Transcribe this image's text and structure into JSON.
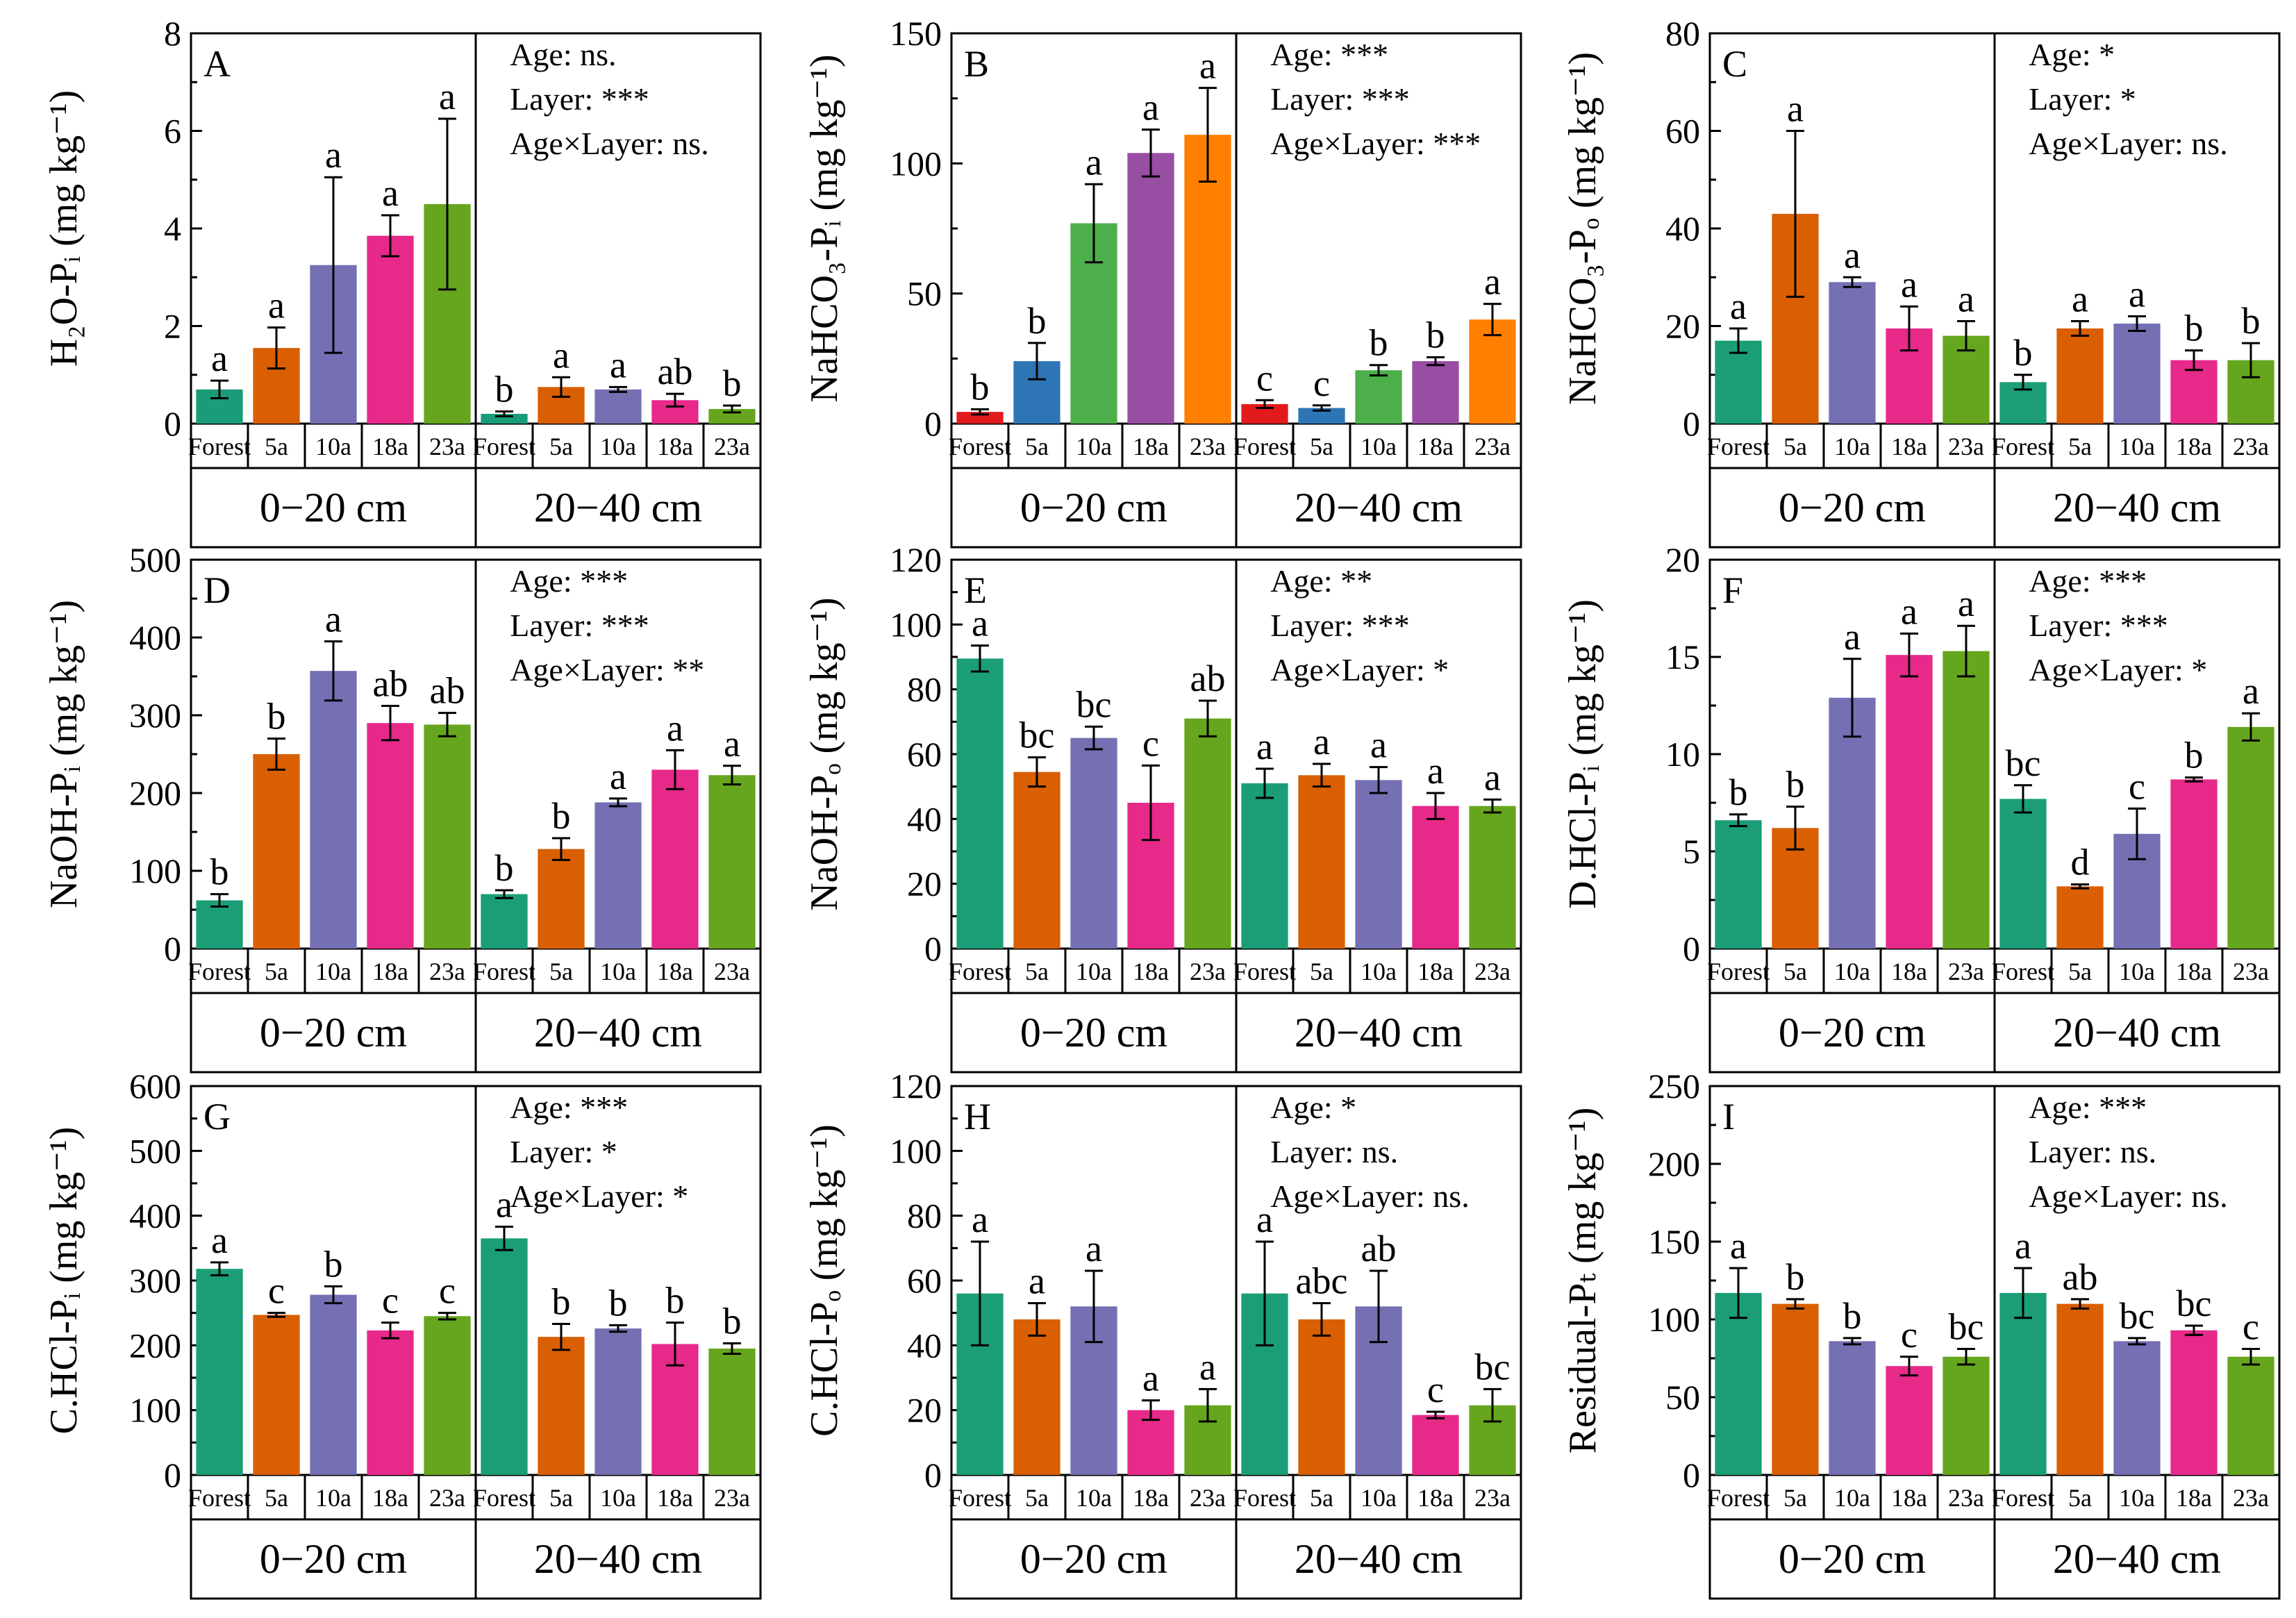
{
  "figure": {
    "layer_labels": [
      "0−20 cm",
      "20−40 cm"
    ]
  },
  "chart_data": [
    {
      "type": "bar",
      "panel": "A",
      "ylabel": "H₂O-Pᵢ (mg kg⁻¹)",
      "ylim": [
        0,
        8
      ],
      "yticks": [
        0,
        2,
        4,
        6,
        8
      ],
      "categories": [
        "Forest",
        "5a",
        "10a",
        "18a",
        "23a"
      ],
      "stats": [
        "Age: ns.",
        "Layer: ***",
        "Age×Layer: ns."
      ],
      "groups": [
        {
          "name": "0−20 cm",
          "values": [
            0.7,
            1.55,
            3.25,
            3.85,
            4.5
          ],
          "errors": [
            0.18,
            0.42,
            1.8,
            0.42,
            1.75
          ],
          "letters": [
            "a",
            "a",
            "a",
            "a",
            "a"
          ]
        },
        {
          "name": "20−40 cm",
          "values": [
            0.2,
            0.75,
            0.7,
            0.48,
            0.3
          ],
          "errors": [
            0.05,
            0.2,
            0.05,
            0.13,
            0.07
          ],
          "letters": [
            "b",
            "a",
            "a",
            "ab",
            "b"
          ]
        }
      ]
    },
    {
      "type": "bar",
      "panel": "B",
      "ylabel": "NaHCO₃-Pᵢ (mg kg⁻¹)",
      "ylim": [
        0,
        150
      ],
      "yticks": [
        0,
        50,
        100,
        150
      ],
      "categories": [
        "Forest",
        "5a",
        "10a",
        "18a",
        "23a"
      ],
      "stats": [
        "Age: ***",
        "Layer: ***",
        "Age×Layer: ***"
      ],
      "groups": [
        {
          "name": "0−20 cm",
          "values": [
            4.5,
            24,
            77,
            104,
            111
          ],
          "errors": [
            1,
            7,
            15,
            9,
            18
          ],
          "letters": [
            "b",
            "b",
            "a",
            "a",
            "a"
          ]
        },
        {
          "name": "20−40 cm",
          "values": [
            7.5,
            6,
            20.5,
            24,
            40
          ],
          "errors": [
            1.5,
            1,
            2,
            1.5,
            6
          ],
          "letters": [
            "c",
            "c",
            "b",
            "b",
            "a"
          ]
        }
      ]
    },
    {
      "type": "bar",
      "panel": "C",
      "ylabel": "NaHCO₃-Pₒ (mg kg⁻¹)",
      "ylim": [
        0,
        80
      ],
      "yticks": [
        0,
        20,
        40,
        60,
        80
      ],
      "categories": [
        "Forest",
        "5a",
        "10a",
        "18a",
        "23a"
      ],
      "stats": [
        "Age: *",
        "Layer: *",
        "Age×Layer: ns."
      ],
      "groups": [
        {
          "name": "0−20 cm",
          "values": [
            17,
            43,
            29,
            19.5,
            18
          ],
          "errors": [
            2.5,
            17,
            1,
            4.5,
            3
          ],
          "letters": [
            "a",
            "a",
            "a",
            "a",
            "a"
          ]
        },
        {
          "name": "20−40 cm",
          "values": [
            8.5,
            19.5,
            20.5,
            13,
            13
          ],
          "errors": [
            1.5,
            1.5,
            1.5,
            2,
            3.5
          ],
          "letters": [
            "b",
            "a",
            "a",
            "b",
            "b"
          ]
        }
      ]
    },
    {
      "type": "bar",
      "panel": "D",
      "ylabel": "NaOH-Pᵢ (mg kg⁻¹)",
      "ylim": [
        0,
        500
      ],
      "yticks": [
        0,
        100,
        200,
        300,
        400,
        500
      ],
      "categories": [
        "Forest",
        "5a",
        "10a",
        "18a",
        "23a"
      ],
      "stats": [
        "Age: ***",
        "Layer: ***",
        "Age×Layer: **"
      ],
      "groups": [
        {
          "name": "0−20 cm",
          "values": [
            62,
            250,
            357,
            290,
            288
          ],
          "errors": [
            8,
            20,
            38,
            22,
            15
          ],
          "letters": [
            "b",
            "b",
            "a",
            "ab",
            "ab"
          ]
        },
        {
          "name": "20−40 cm",
          "values": [
            70,
            128,
            188,
            230,
            223
          ],
          "errors": [
            5,
            14,
            5,
            25,
            12
          ],
          "letters": [
            "b",
            "b",
            "a",
            "a",
            "a"
          ]
        }
      ]
    },
    {
      "type": "bar",
      "panel": "E",
      "ylabel": "NaOH-Pₒ (mg kg⁻¹)",
      "ylim": [
        0,
        120
      ],
      "yticks": [
        0,
        20,
        40,
        60,
        80,
        100,
        120
      ],
      "categories": [
        "Forest",
        "5a",
        "10a",
        "18a",
        "23a"
      ],
      "stats": [
        "Age: **",
        "Layer: ***",
        "Age×Layer: *"
      ],
      "groups": [
        {
          "name": "0−20 cm",
          "values": [
            89.5,
            54.5,
            65,
            45,
            71
          ],
          "errors": [
            4,
            4.5,
            3.5,
            11.5,
            5.5
          ],
          "letters": [
            "a",
            "bc",
            "bc",
            "c",
            "ab"
          ]
        },
        {
          "name": "20−40 cm",
          "values": [
            51,
            53.5,
            52,
            44,
            44
          ],
          "errors": [
            4.5,
            3.5,
            4,
            4,
            2
          ],
          "letters": [
            "a",
            "a",
            "a",
            "a",
            "a"
          ]
        }
      ]
    },
    {
      "type": "bar",
      "panel": "F",
      "ylabel": "D.HCl-Pᵢ (mg kg⁻¹)",
      "ylim": [
        0,
        20
      ],
      "yticks": [
        0,
        5,
        10,
        15,
        20
      ],
      "categories": [
        "Forest",
        "5a",
        "10a",
        "18a",
        "23a"
      ],
      "stats": [
        "Age: ***",
        "Layer: ***",
        "Age×Layer: *"
      ],
      "groups": [
        {
          "name": "0−20 cm",
          "values": [
            6.6,
            6.2,
            12.9,
            15.1,
            15.3
          ],
          "errors": [
            0.3,
            1.1,
            2,
            1.1,
            1.3
          ],
          "letters": [
            "b",
            "b",
            "a",
            "a",
            "a"
          ]
        },
        {
          "name": "20−40 cm",
          "values": [
            7.7,
            3.2,
            5.9,
            8.7,
            11.4
          ],
          "errors": [
            0.7,
            0.1,
            1.3,
            0.1,
            0.7
          ],
          "letters": [
            "bc",
            "d",
            "c",
            "b",
            "a"
          ]
        }
      ]
    },
    {
      "type": "bar",
      "panel": "G",
      "ylabel": "C.HCl-Pᵢ (mg kg⁻¹)",
      "ylim": [
        0,
        600
      ],
      "yticks": [
        0,
        100,
        200,
        300,
        400,
        500,
        600
      ],
      "categories": [
        "Forest",
        "5a",
        "10a",
        "18a",
        "23a"
      ],
      "stats": [
        "Age: ***",
        "Layer: *",
        "Age×Layer: *"
      ],
      "groups": [
        {
          "name": "0−20 cm",
          "values": [
            318,
            247,
            278,
            223,
            245
          ],
          "errors": [
            10,
            3,
            13,
            12,
            5
          ],
          "letters": [
            "a",
            "c",
            "b",
            "c",
            "c"
          ]
        },
        {
          "name": "20−40 cm",
          "values": [
            365,
            213,
            226,
            202,
            195
          ],
          "errors": [
            18,
            20,
            5,
            33,
            8
          ],
          "letters": [
            "a",
            "b",
            "b",
            "b",
            "b"
          ]
        }
      ]
    },
    {
      "type": "bar",
      "panel": "H",
      "ylabel": "C.HCl-Pₒ (mg kg⁻¹)",
      "ylim": [
        0,
        120
      ],
      "yticks": [
        0,
        20,
        40,
        60,
        80,
        100,
        120
      ],
      "categories": [
        "Forest",
        "5a",
        "10a",
        "18a",
        "23a"
      ],
      "stats": [
        "Age: *",
        "Layer: ns.",
        "Age×Layer: ns."
      ],
      "groups": [
        {
          "name": "0−20 cm",
          "values": [
            56,
            48,
            52,
            20,
            21.5
          ],
          "errors": [
            16,
            5,
            11,
            3,
            5
          ],
          "letters": [
            "a",
            "a",
            "a",
            "a",
            "a"
          ]
        },
        {
          "name": "20−40 cm",
          "values": [
            56,
            48,
            52,
            18.5,
            21.5
          ],
          "errors": [
            16,
            5,
            11,
            1,
            5
          ],
          "letters": [
            "a",
            "abc",
            "ab",
            "c",
            "bc"
          ]
        }
      ]
    },
    {
      "type": "bar",
      "panel": "I",
      "ylabel": "Residual-Pₜ (mg kg⁻¹)",
      "ylim": [
        0,
        250
      ],
      "yticks": [
        0,
        50,
        100,
        150,
        200,
        250
      ],
      "categories": [
        "Forest",
        "5a",
        "10a",
        "18a",
        "23a"
      ],
      "stats": [
        "Age: ***",
        "Layer: ns.",
        "Age×Layer: ns."
      ],
      "groups": [
        {
          "name": "0−20 cm",
          "values": [
            117,
            110,
            86,
            70,
            76
          ],
          "errors": [
            16,
            3,
            2,
            6,
            5
          ],
          "letters": [
            "a",
            "b",
            "b",
            "c",
            "bc"
          ]
        },
        {
          "name": "20−40 cm",
          "values": [
            117,
            110,
            86,
            93,
            76
          ],
          "errors": [
            16,
            3,
            2,
            3,
            5
          ],
          "letters": [
            "a",
            "ab",
            "bc",
            "bc",
            "c"
          ]
        }
      ]
    }
  ],
  "colors": {
    "A": [
      "#1a9c79",
      "#d95f02",
      "#7570b3",
      "#e7298a",
      "#66a61e"
    ],
    "B": [
      "#e31a1c",
      "#2e75b6",
      "#4daf4a",
      "#984ea3",
      "#ff7f00"
    ],
    "default": [
      "#1b9e77",
      "#d95f02",
      "#7570b3",
      "#e7298a",
      "#66a61e"
    ]
  }
}
